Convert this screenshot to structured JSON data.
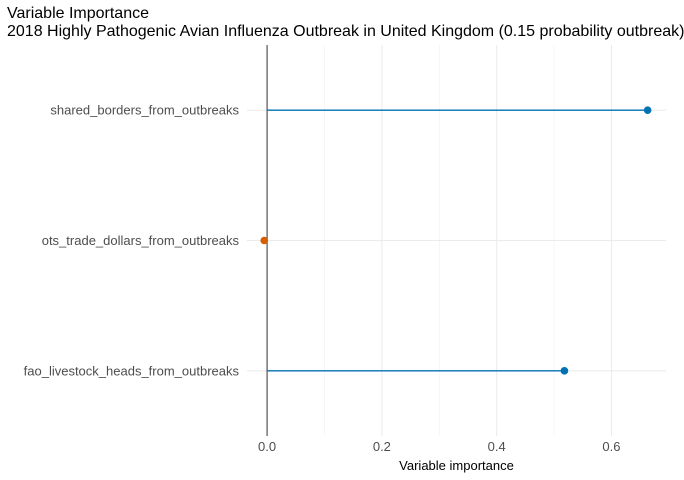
{
  "chart_data": {
    "type": "lollipop",
    "title": "Variable Importance",
    "subtitle": "2018 Highly Pathogenic Avian Influenza Outbreak in United Kingdom (0.15 probability outbreak)",
    "xlabel": "Variable importance",
    "ylabel": "",
    "xlim": [
      -0.035,
      0.695
    ],
    "x_ticks": [
      0.0,
      0.2,
      0.4,
      0.6
    ],
    "x_tick_labels": [
      "0.0",
      "0.2",
      "0.4",
      "0.6"
    ],
    "grid": true,
    "categories": [
      "shared_borders_from_outbreaks",
      "ots_trade_dollars_from_outbreaks",
      "fao_livestock_heads_from_outbreaks"
    ],
    "values": [
      0.663,
      -0.005,
      0.518
    ],
    "colors": [
      "#0072B2",
      "#D55E00",
      "#0072B2"
    ],
    "zero_line_color": "#555555"
  }
}
